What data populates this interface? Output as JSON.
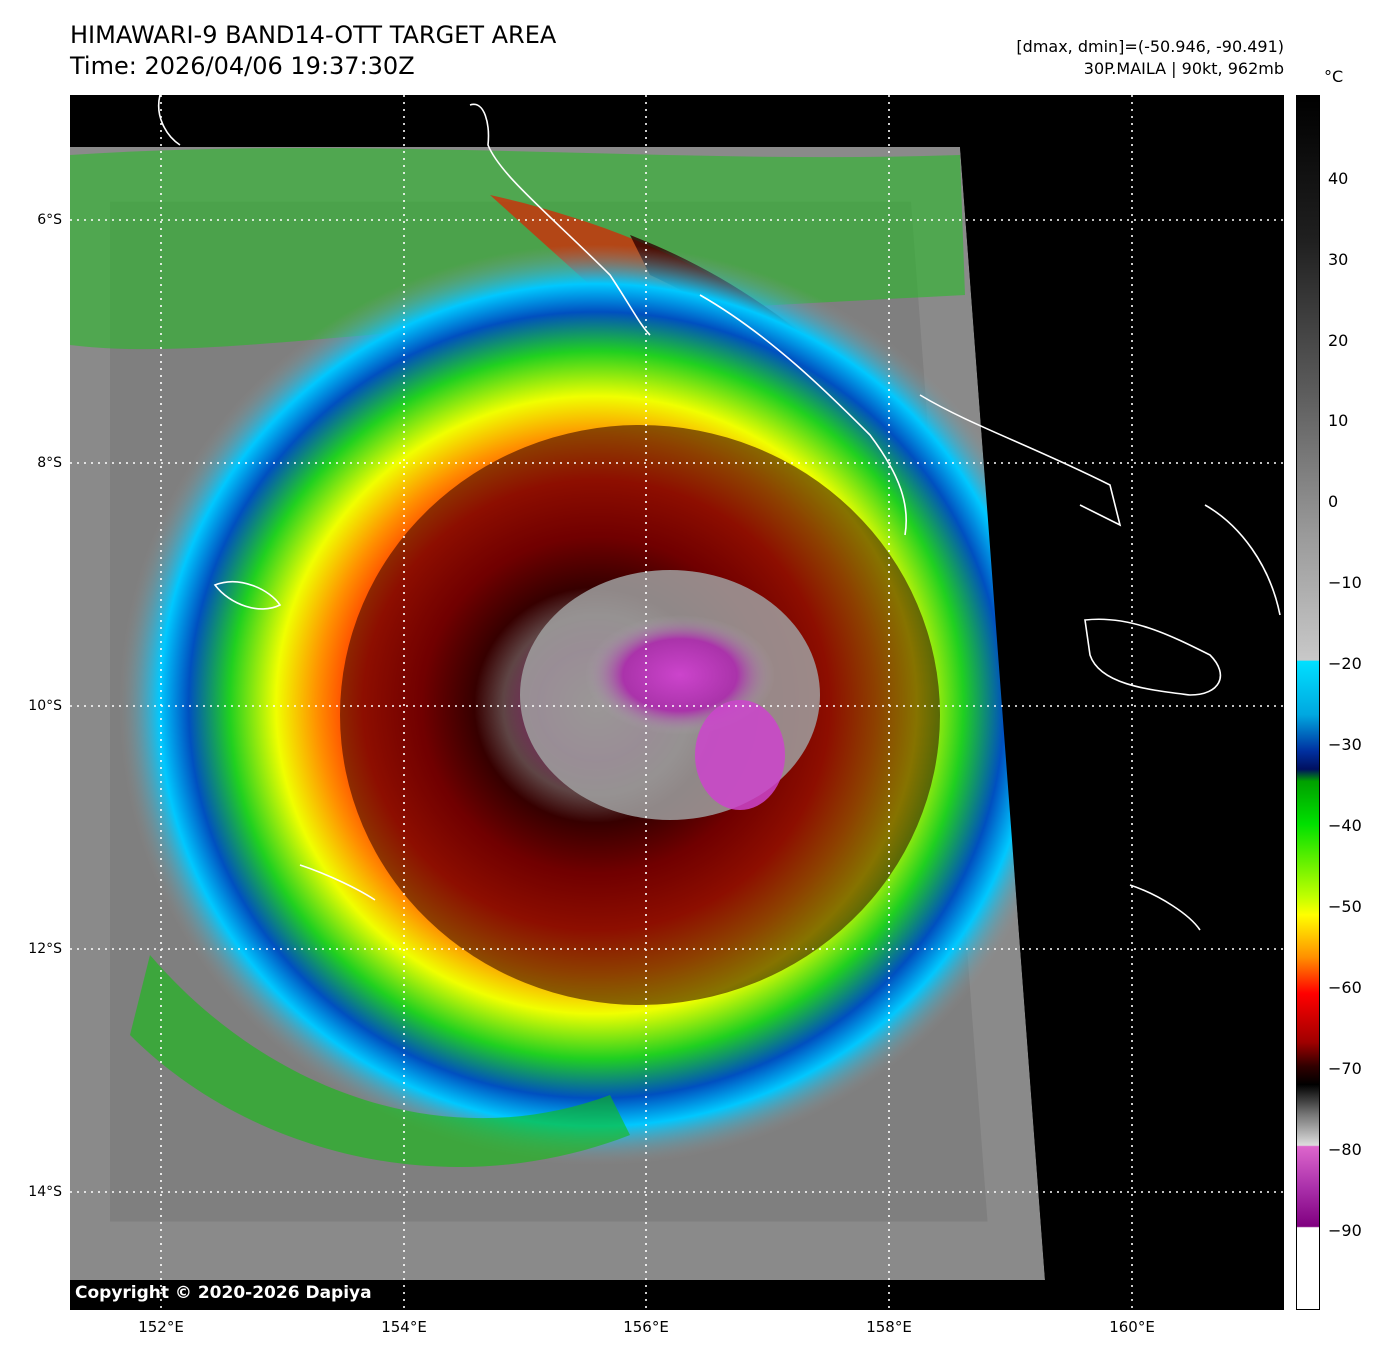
{
  "header": {
    "title": "HIMAWARI-9 BAND14-OTT TARGET AREA",
    "time": "Time: 2026/04/06 19:37:30Z",
    "range": "[dmax, dmin]=(-50.946, -90.491)",
    "storm": "30P.MAILA | 90kt, 962mb"
  },
  "colorbar": {
    "unit": "°C",
    "ticks": [
      "40",
      "30",
      "20",
      "10",
      "0",
      "−10",
      "−20",
      "−30",
      "−40",
      "−50",
      "−60",
      "−70",
      "−80",
      "−90"
    ]
  },
  "axes": {
    "lat_labels": [
      "6°S",
      "8°S",
      "10°S",
      "12°S",
      "14°S"
    ],
    "lon_labels": [
      "152°E",
      "154°E",
      "156°E",
      "158°E",
      "160°E"
    ]
  },
  "image": {
    "subject": "tropical cyclone infrared satellite image",
    "colors": {
      "background": "#000000",
      "gray_cloud": "#8a8a8a",
      "cyan": "#00d8ff",
      "green": "#10d010",
      "yellow": "#f0ff00",
      "orange": "#ff8c00",
      "red": "#e00000",
      "dark_red": "#500000",
      "magenta": "#cc44cc",
      "coastline": "#ffffff"
    }
  },
  "footer": {
    "copyright": "Copyright © 2020-2026 Dapiya"
  }
}
